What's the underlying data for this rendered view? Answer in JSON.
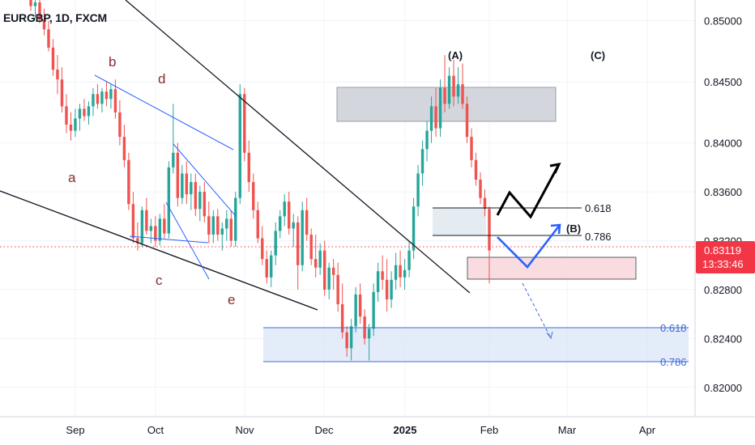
{
  "symbol_title": "EURGBP, 1D, FXCM",
  "chart_data": {
    "type": "candlestick",
    "title": "EURGBP, 1D, FXCM",
    "y_axis_ticks": [
      "0.85000",
      "0.84500",
      "0.84000",
      "0.83600",
      "0.83200",
      "0.82800",
      "0.82400",
      "0.82000"
    ],
    "y_axis_tick_values": [
      0.85,
      0.845,
      0.84,
      0.836,
      0.832,
      0.828,
      0.824,
      0.82
    ],
    "x_axis_ticks": [
      "Sep",
      "Oct",
      "Nov",
      "Dec",
      "2025",
      "Feb",
      "Mar",
      "Apr"
    ],
    "ylim": [
      0.8176,
      0.8517
    ],
    "current_price": "0.83119",
    "countdown": "13:33:46",
    "current_price_value": 0.83119,
    "wave_labels": [
      "a",
      "b",
      "c",
      "d",
      "e"
    ],
    "abc_labels": [
      "(A)",
      "(B)",
      "(C)"
    ],
    "fib_labels": [
      "0.618",
      "0.786",
      "0.618",
      "0.786"
    ],
    "colors": {
      "up": "#26a69a",
      "down": "#ef5350",
      "trendline": "#131722",
      "wedge": "#2962ff",
      "projection_black": "#000000",
      "projection_blue": "#2962ff",
      "gray_zone": "#d1d4dc",
      "pink_zone": "#f8d7da",
      "blue_zone": "#dbe6f7",
      "price_tag": "#f23645",
      "fib_blue": "#3d6bd6"
    },
    "candles": [
      {
        "o": 0.8521,
        "h": 0.8528,
        "l": 0.8508,
        "c": 0.8512
      },
      {
        "o": 0.8512,
        "h": 0.852,
        "l": 0.8502,
        "c": 0.8515
      },
      {
        "o": 0.8515,
        "h": 0.852,
        "l": 0.8498,
        "c": 0.8501
      },
      {
        "o": 0.8501,
        "h": 0.851,
        "l": 0.8488,
        "c": 0.8493
      },
      {
        "o": 0.8493,
        "h": 0.85,
        "l": 0.8475,
        "c": 0.8478
      },
      {
        "o": 0.8478,
        "h": 0.8485,
        "l": 0.8455,
        "c": 0.846
      },
      {
        "o": 0.846,
        "h": 0.8472,
        "l": 0.844,
        "c": 0.8452
      },
      {
        "o": 0.8452,
        "h": 0.8462,
        "l": 0.8425,
        "c": 0.843
      },
      {
        "o": 0.843,
        "h": 0.844,
        "l": 0.8408,
        "c": 0.8415
      },
      {
        "o": 0.8415,
        "h": 0.8425,
        "l": 0.8402,
        "c": 0.841
      },
      {
        "o": 0.841,
        "h": 0.8428,
        "l": 0.8405,
        "c": 0.842
      },
      {
        "o": 0.842,
        "h": 0.8432,
        "l": 0.841,
        "c": 0.8428
      },
      {
        "o": 0.8428,
        "h": 0.8436,
        "l": 0.8418,
        "c": 0.8422
      },
      {
        "o": 0.8422,
        "h": 0.8434,
        "l": 0.8415,
        "c": 0.843
      },
      {
        "o": 0.843,
        "h": 0.8445,
        "l": 0.8422,
        "c": 0.844
      },
      {
        "o": 0.844,
        "h": 0.8448,
        "l": 0.8428,
        "c": 0.8432
      },
      {
        "o": 0.8432,
        "h": 0.8445,
        "l": 0.8425,
        "c": 0.8442
      },
      {
        "o": 0.8442,
        "h": 0.845,
        "l": 0.843,
        "c": 0.8436
      },
      {
        "o": 0.8436,
        "h": 0.8448,
        "l": 0.8428,
        "c": 0.8444
      },
      {
        "o": 0.8444,
        "h": 0.8452,
        "l": 0.842,
        "c": 0.8425
      },
      {
        "o": 0.8425,
        "h": 0.8435,
        "l": 0.8398,
        "c": 0.8405
      },
      {
        "o": 0.8405,
        "h": 0.8415,
        "l": 0.838,
        "c": 0.8386
      },
      {
        "o": 0.8386,
        "h": 0.8392,
        "l": 0.8345,
        "c": 0.835
      },
      {
        "o": 0.835,
        "h": 0.836,
        "l": 0.8318,
        "c": 0.8322
      },
      {
        "o": 0.8322,
        "h": 0.8335,
        "l": 0.8312,
        "c": 0.8318
      },
      {
        "o": 0.8318,
        "h": 0.8348,
        "l": 0.8315,
        "c": 0.8345
      },
      {
        "o": 0.8345,
        "h": 0.8355,
        "l": 0.8325,
        "c": 0.8328
      },
      {
        "o": 0.8328,
        "h": 0.8338,
        "l": 0.8318,
        "c": 0.8332
      },
      {
        "o": 0.8332,
        "h": 0.834,
        "l": 0.8315,
        "c": 0.832
      },
      {
        "o": 0.832,
        "h": 0.8342,
        "l": 0.8316,
        "c": 0.8338
      },
      {
        "o": 0.8338,
        "h": 0.835,
        "l": 0.8322,
        "c": 0.8326
      },
      {
        "o": 0.8326,
        "h": 0.8385,
        "l": 0.8322,
        "c": 0.838
      },
      {
        "o": 0.838,
        "h": 0.8432,
        "l": 0.8375,
        "c": 0.8392
      },
      {
        "o": 0.8392,
        "h": 0.84,
        "l": 0.8348,
        "c": 0.8355
      },
      {
        "o": 0.8355,
        "h": 0.8382,
        "l": 0.835,
        "c": 0.8375
      },
      {
        "o": 0.8375,
        "h": 0.8385,
        "l": 0.835,
        "c": 0.8358
      },
      {
        "o": 0.8358,
        "h": 0.8375,
        "l": 0.8345,
        "c": 0.8368
      },
      {
        "o": 0.8368,
        "h": 0.8375,
        "l": 0.834,
        "c": 0.8346
      },
      {
        "o": 0.8346,
        "h": 0.8365,
        "l": 0.8336,
        "c": 0.836
      },
      {
        "o": 0.836,
        "h": 0.8368,
        "l": 0.8335,
        "c": 0.834
      },
      {
        "o": 0.834,
        "h": 0.8352,
        "l": 0.8318,
        "c": 0.8325
      },
      {
        "o": 0.8325,
        "h": 0.8345,
        "l": 0.8318,
        "c": 0.834
      },
      {
        "o": 0.834,
        "h": 0.8346,
        "l": 0.832,
        "c": 0.8325
      },
      {
        "o": 0.8325,
        "h": 0.8335,
        "l": 0.8312,
        "c": 0.833
      },
      {
        "o": 0.833,
        "h": 0.8345,
        "l": 0.832,
        "c": 0.8338
      },
      {
        "o": 0.8338,
        "h": 0.8345,
        "l": 0.8315,
        "c": 0.832
      },
      {
        "o": 0.832,
        "h": 0.836,
        "l": 0.8315,
        "c": 0.8355
      },
      {
        "o": 0.8355,
        "h": 0.8448,
        "l": 0.835,
        "c": 0.844
      },
      {
        "o": 0.844,
        "h": 0.8445,
        "l": 0.8385,
        "c": 0.8392
      },
      {
        "o": 0.8392,
        "h": 0.8402,
        "l": 0.836,
        "c": 0.8368
      },
      {
        "o": 0.8368,
        "h": 0.8375,
        "l": 0.8338,
        "c": 0.8345
      },
      {
        "o": 0.8345,
        "h": 0.8352,
        "l": 0.8318,
        "c": 0.8322
      },
      {
        "o": 0.8322,
        "h": 0.8332,
        "l": 0.83,
        "c": 0.8305
      },
      {
        "o": 0.8305,
        "h": 0.8312,
        "l": 0.8285,
        "c": 0.829
      },
      {
        "o": 0.829,
        "h": 0.8312,
        "l": 0.8282,
        "c": 0.8308
      },
      {
        "o": 0.8308,
        "h": 0.8335,
        "l": 0.83,
        "c": 0.8328
      },
      {
        "o": 0.8328,
        "h": 0.8345,
        "l": 0.8322,
        "c": 0.834
      },
      {
        "o": 0.834,
        "h": 0.8358,
        "l": 0.8332,
        "c": 0.8352
      },
      {
        "o": 0.8352,
        "h": 0.836,
        "l": 0.8325,
        "c": 0.833
      },
      {
        "o": 0.833,
        "h": 0.8342,
        "l": 0.8315,
        "c": 0.8335
      },
      {
        "o": 0.8335,
        "h": 0.834,
        "l": 0.828,
        "c": 0.83
      },
      {
        "o": 0.83,
        "h": 0.8352,
        "l": 0.8295,
        "c": 0.8345
      },
      {
        "o": 0.8345,
        "h": 0.8355,
        "l": 0.832,
        "c": 0.8325
      },
      {
        "o": 0.8325,
        "h": 0.833,
        "l": 0.83,
        "c": 0.8305
      },
      {
        "o": 0.8305,
        "h": 0.8325,
        "l": 0.829,
        "c": 0.8298
      },
      {
        "o": 0.8298,
        "h": 0.8318,
        "l": 0.8292,
        "c": 0.8312
      },
      {
        "o": 0.8312,
        "h": 0.832,
        "l": 0.8275,
        "c": 0.828
      },
      {
        "o": 0.828,
        "h": 0.8302,
        "l": 0.8272,
        "c": 0.8298
      },
      {
        "o": 0.8298,
        "h": 0.8305,
        "l": 0.828,
        "c": 0.8292
      },
      {
        "o": 0.8292,
        "h": 0.8302,
        "l": 0.8262,
        "c": 0.8268
      },
      {
        "o": 0.8268,
        "h": 0.8285,
        "l": 0.824,
        "c": 0.8245
      },
      {
        "o": 0.8245,
        "h": 0.825,
        "l": 0.8225,
        "c": 0.8232
      },
      {
        "o": 0.8232,
        "h": 0.8256,
        "l": 0.8222,
        "c": 0.825
      },
      {
        "o": 0.825,
        "h": 0.8282,
        "l": 0.8245,
        "c": 0.8276
      },
      {
        "o": 0.8276,
        "h": 0.8285,
        "l": 0.8252,
        "c": 0.8258
      },
      {
        "o": 0.8258,
        "h": 0.8264,
        "l": 0.8235,
        "c": 0.824
      },
      {
        "o": 0.824,
        "h": 0.8252,
        "l": 0.8222,
        "c": 0.8248
      },
      {
        "o": 0.8248,
        "h": 0.8285,
        "l": 0.8242,
        "c": 0.8278
      },
      {
        "o": 0.8278,
        "h": 0.8302,
        "l": 0.827,
        "c": 0.8295
      },
      {
        "o": 0.8295,
        "h": 0.8308,
        "l": 0.828,
        "c": 0.8288
      },
      {
        "o": 0.8288,
        "h": 0.8305,
        "l": 0.8262,
        "c": 0.8272
      },
      {
        "o": 0.8272,
        "h": 0.8295,
        "l": 0.8265,
        "c": 0.8288
      },
      {
        "o": 0.8288,
        "h": 0.831,
        "l": 0.828,
        "c": 0.83
      },
      {
        "o": 0.83,
        "h": 0.8312,
        "l": 0.8282,
        "c": 0.829
      },
      {
        "o": 0.829,
        "h": 0.8305,
        "l": 0.828,
        "c": 0.8296
      },
      {
        "o": 0.8296,
        "h": 0.832,
        "l": 0.829,
        "c": 0.8312
      },
      {
        "o": 0.8312,
        "h": 0.8355,
        "l": 0.8305,
        "c": 0.8348
      },
      {
        "o": 0.8348,
        "h": 0.8382,
        "l": 0.834,
        "c": 0.8375
      },
      {
        "o": 0.8375,
        "h": 0.8402,
        "l": 0.8365,
        "c": 0.8395
      },
      {
        "o": 0.8395,
        "h": 0.8418,
        "l": 0.8385,
        "c": 0.841
      },
      {
        "o": 0.841,
        "h": 0.8438,
        "l": 0.84,
        "c": 0.843
      },
      {
        "o": 0.843,
        "h": 0.8445,
        "l": 0.8405,
        "c": 0.8412
      },
      {
        "o": 0.8412,
        "h": 0.8452,
        "l": 0.8405,
        "c": 0.8445
      },
      {
        "o": 0.8445,
        "h": 0.8472,
        "l": 0.8425,
        "c": 0.8432
      },
      {
        "o": 0.8432,
        "h": 0.8462,
        "l": 0.8428,
        "c": 0.8455
      },
      {
        "o": 0.8455,
        "h": 0.8468,
        "l": 0.843,
        "c": 0.8438
      },
      {
        "o": 0.8438,
        "h": 0.8462,
        "l": 0.8432,
        "c": 0.8448
      },
      {
        "o": 0.8448,
        "h": 0.8465,
        "l": 0.8428,
        "c": 0.8432
      },
      {
        "o": 0.8432,
        "h": 0.8438,
        "l": 0.84,
        "c": 0.8405
      },
      {
        "o": 0.8405,
        "h": 0.8412,
        "l": 0.838,
        "c": 0.8386
      },
      {
        "o": 0.8386,
        "h": 0.8392,
        "l": 0.8365,
        "c": 0.837
      },
      {
        "o": 0.837,
        "h": 0.8376,
        "l": 0.835,
        "c": 0.8355
      },
      {
        "o": 0.8355,
        "h": 0.8362,
        "l": 0.834,
        "c": 0.8346
      },
      {
        "o": 0.8346,
        "h": 0.8348,
        "l": 0.8285,
        "c": 0.8312
      }
    ]
  }
}
